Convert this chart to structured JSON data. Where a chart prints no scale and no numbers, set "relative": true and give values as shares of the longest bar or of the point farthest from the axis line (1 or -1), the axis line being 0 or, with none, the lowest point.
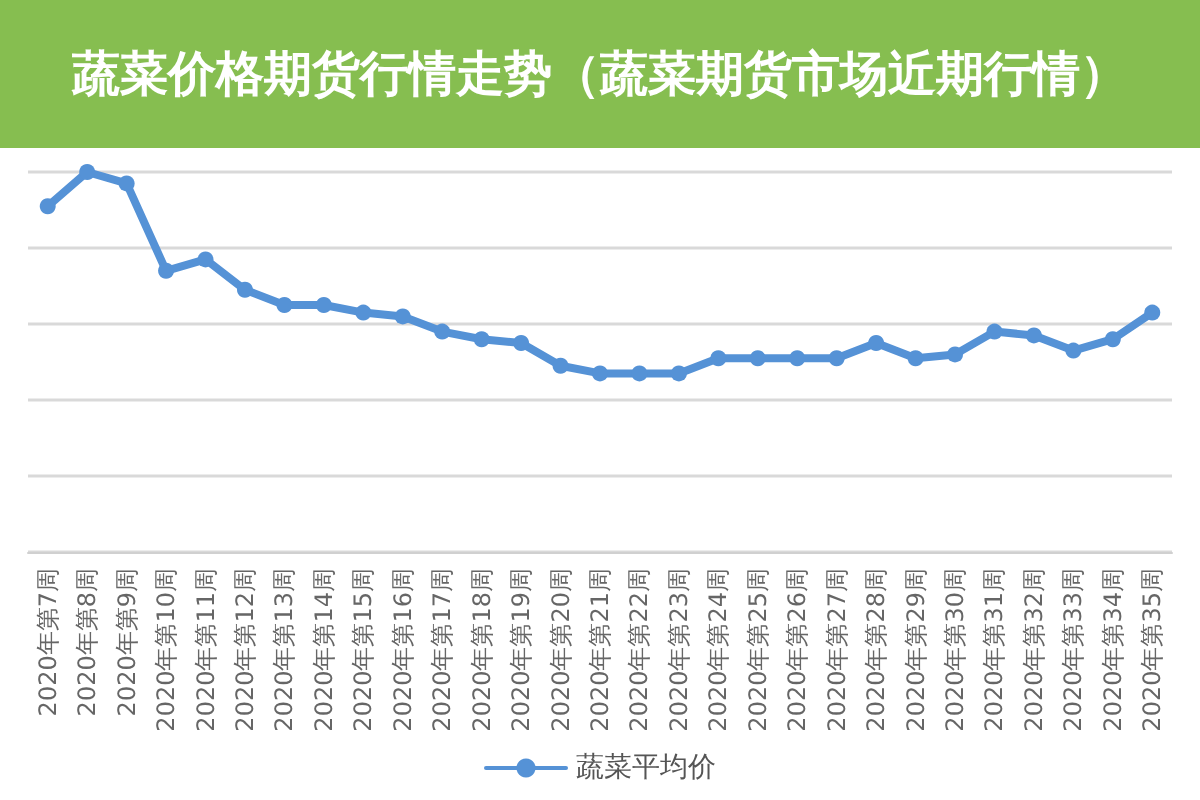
{
  "chart_data": {
    "type": "line",
    "title": "蔬菜价格期货行情走势（蔬菜期货市场近期行情）",
    "relative": true,
    "categories": [
      "2020年第7周",
      "2020年第8周",
      "2020年第9周",
      "2020年第10周",
      "2020年第11周",
      "2020年第12周",
      "2020年第13周",
      "2020年第14周",
      "2020年第15周",
      "2020年第16周",
      "2020年第17周",
      "2020年第18周",
      "2020年第19周",
      "2020年第20周",
      "2020年第21周",
      "2020年第22周",
      "2020年第23周",
      "2020年第24周",
      "2020年第25周",
      "2020年第26周",
      "2020年第27周",
      "2020年第28周",
      "2020年第29周",
      "2020年第30周",
      "2020年第31周",
      "2020年第32周",
      "2020年第33周",
      "2020年第34周",
      "2020年第35周"
    ],
    "series": [
      {
        "name": "蔬菜平均价",
        "color": "#5592d6",
        "values": [
          0.91,
          1.0,
          0.97,
          0.74,
          0.77,
          0.69,
          0.65,
          0.65,
          0.63,
          0.62,
          0.58,
          0.56,
          0.55,
          0.49,
          0.47,
          0.47,
          0.47,
          0.51,
          0.51,
          0.51,
          0.51,
          0.55,
          0.51,
          0.52,
          0.58,
          0.57,
          0.53,
          0.56,
          0.63
        ]
      }
    ],
    "grid": "y",
    "legend": "bottom",
    "marker": "circle",
    "line_style": "solid"
  }
}
